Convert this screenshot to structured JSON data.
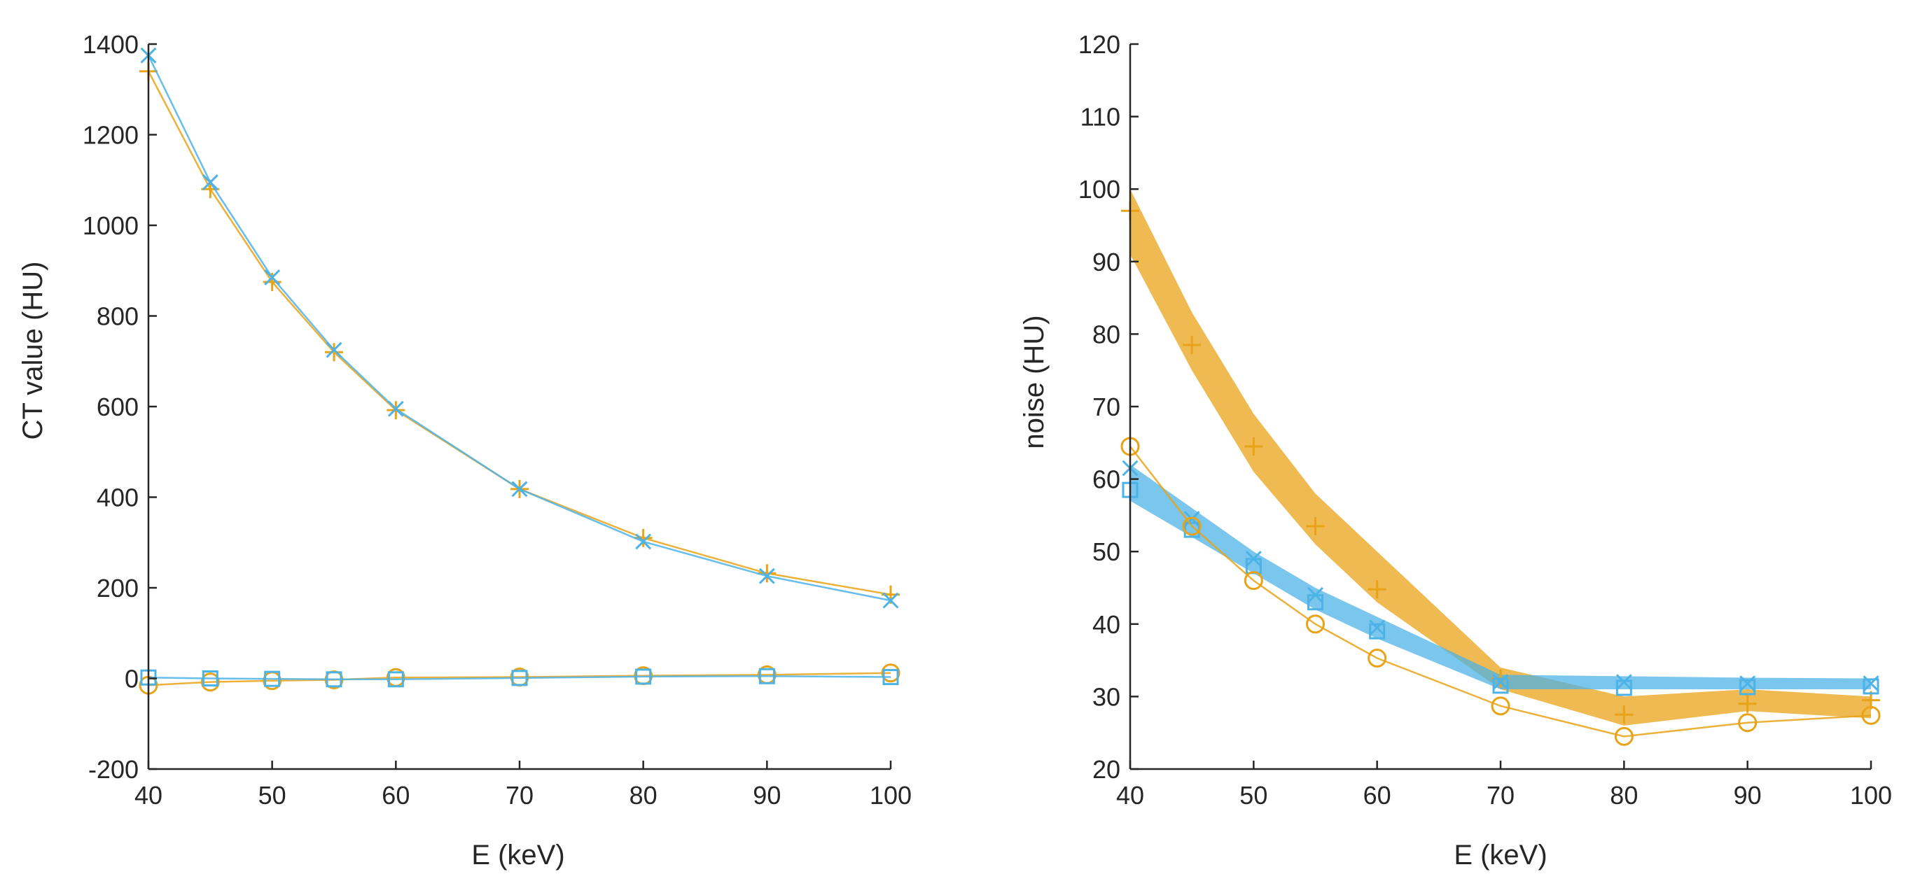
{
  "colors": {
    "orange": "#e8a317",
    "blue": "#4db3e6",
    "axis": "#262626",
    "background": "#ffffff"
  },
  "chart_data": [
    {
      "type": "line",
      "xlabel": "E (keV)",
      "ylabel": "CT value (HU)",
      "xlim": [
        40,
        100
      ],
      "ylim": [
        -200,
        1400
      ],
      "xticks": [
        40,
        50,
        60,
        70,
        80,
        90,
        100
      ],
      "yticks": [
        -200,
        0,
        200,
        400,
        600,
        800,
        1000,
        1200,
        1400
      ],
      "grid": false,
      "legend": "none",
      "series": [
        {
          "marker": "plus",
          "color": "orange",
          "x": [
            40,
            45,
            50,
            55,
            60,
            70,
            80,
            90,
            100
          ],
          "y": [
            1340,
            1080,
            875,
            720,
            592,
            418,
            310,
            232,
            185
          ]
        },
        {
          "marker": "x",
          "color": "blue",
          "x": [
            40,
            45,
            50,
            55,
            60,
            70,
            80,
            90,
            100
          ],
          "y": [
            1375,
            1095,
            885,
            725,
            595,
            418,
            302,
            226,
            172
          ]
        },
        {
          "marker": "circle",
          "color": "orange",
          "x": [
            40,
            45,
            50,
            55,
            60,
            70,
            80,
            90,
            100
          ],
          "y": [
            -15,
            -8,
            -5,
            -3,
            2,
            3,
            6,
            8,
            12
          ]
        },
        {
          "marker": "square",
          "color": "blue",
          "x": [
            40,
            45,
            50,
            55,
            60,
            70,
            80,
            90,
            100
          ],
          "y": [
            2,
            0,
            -1,
            -2,
            -2,
            1,
            4,
            5,
            3
          ]
        }
      ]
    },
    {
      "type": "line",
      "xlabel": "E (keV)",
      "ylabel": "noise (HU)",
      "xlim": [
        40,
        100
      ],
      "ylim": [
        20,
        120
      ],
      "xticks": [
        40,
        50,
        60,
        70,
        80,
        90,
        100
      ],
      "yticks": [
        20,
        30,
        40,
        50,
        60,
        70,
        80,
        90,
        100,
        110,
        120
      ],
      "grid": false,
      "legend": "none",
      "bands": [
        {
          "color": "orange",
          "x": [
            40,
            45,
            50,
            55,
            60,
            70,
            80,
            90,
            100
          ],
          "lower": [
            91,
            75,
            61,
            51,
            43,
            31,
            26,
            28,
            27
          ],
          "upper": [
            100,
            83,
            69,
            58,
            50,
            34,
            30,
            31,
            30
          ]
        },
        {
          "color": "blue",
          "x": [
            40,
            45,
            50,
            55,
            60,
            70,
            80,
            90,
            100
          ],
          "lower": [
            57,
            52,
            47,
            42,
            38,
            31,
            31,
            31,
            31
          ],
          "upper": [
            62,
            56,
            50,
            45,
            41,
            33,
            32.8,
            32.6,
            32.5
          ]
        }
      ],
      "series": [
        {
          "marker": "plus",
          "color": "orange",
          "line": false,
          "x": [
            40,
            45,
            50,
            55,
            60,
            70,
            80,
            90,
            100
          ],
          "y": [
            97,
            78.5,
            64.5,
            53.5,
            44.8,
            32.5,
            27.5,
            29,
            29.5
          ]
        },
        {
          "marker": "x",
          "color": "blue",
          "line": false,
          "x": [
            40,
            45,
            50,
            55,
            60,
            70,
            80,
            90,
            100
          ],
          "y": [
            61.5,
            54.5,
            49,
            44,
            39.5,
            32,
            32,
            31.8,
            31.8
          ]
        },
        {
          "marker": "square",
          "color": "blue",
          "line": false,
          "x": [
            40,
            45,
            50,
            55,
            60,
            70,
            80,
            90,
            100
          ],
          "y": [
            58.5,
            53,
            48,
            43,
            39,
            31.5,
            31.2,
            31.3,
            31.4
          ]
        },
        {
          "marker": "circle",
          "color": "orange",
          "line": true,
          "x": [
            40,
            45,
            50,
            55,
            60,
            70,
            80,
            90,
            100
          ],
          "y": [
            64.5,
            53.5,
            46,
            40,
            35.3,
            28.7,
            24.5,
            26.4,
            27.4
          ]
        }
      ]
    }
  ]
}
